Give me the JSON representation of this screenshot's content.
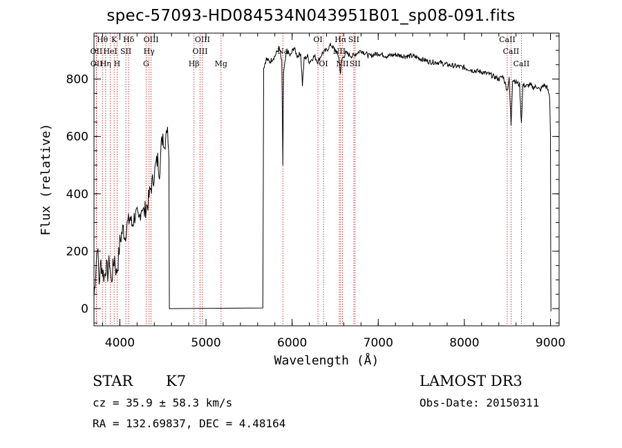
{
  "title": "spec-57093-HD084534N043951B01_sp08-091.fits",
  "info": {
    "class_label": "STAR",
    "subclass": "K7",
    "survey": "LAMOST DR3",
    "cz": "cz = 35.9 ± 58.3 km/s",
    "obs_date": "Obs-Date: 20150311",
    "radec": "RA = 132.69837, DEC =   4.48164"
  },
  "chart_data": {
    "type": "line",
    "title": "spec-57093-HD084534N043951B01_sp08-091.fits",
    "xlabel": "Wavelength (Å)",
    "ylabel": "Flux (relative)",
    "xlim": [
      3700,
      9100
    ],
    "ylim": [
      -60,
      960
    ],
    "xticks": [
      4000,
      5000,
      6000,
      7000,
      8000,
      9000
    ],
    "yticks": [
      0,
      200,
      400,
      600,
      800
    ],
    "spectrum": [
      [
        3700,
        40
      ],
      [
        3720,
        130
      ],
      [
        3740,
        230
      ],
      [
        3760,
        90
      ],
      [
        3780,
        160
      ],
      [
        3800,
        130
      ],
      [
        3820,
        110
      ],
      [
        3840,
        150
      ],
      [
        3860,
        120
      ],
      [
        3880,
        170
      ],
      [
        3900,
        90
      ],
      [
        3920,
        140
      ],
      [
        3940,
        180
      ],
      [
        3960,
        120
      ],
      [
        3980,
        160
      ],
      [
        4000,
        230
      ],
      [
        4020,
        260
      ],
      [
        4040,
        280
      ],
      [
        4060,
        250
      ],
      [
        4080,
        290
      ],
      [
        4100,
        300
      ],
      [
        4120,
        320
      ],
      [
        4140,
        290
      ],
      [
        4160,
        310
      ],
      [
        4180,
        330
      ],
      [
        4200,
        320
      ],
      [
        4220,
        300
      ],
      [
        4240,
        340
      ],
      [
        4260,
        360
      ],
      [
        4280,
        330
      ],
      [
        4300,
        350
      ],
      [
        4320,
        360
      ],
      [
        4340,
        390
      ],
      [
        4360,
        420
      ],
      [
        4380,
        440
      ],
      [
        4400,
        470
      ],
      [
        4420,
        500
      ],
      [
        4440,
        520
      ],
      [
        4460,
        480
      ],
      [
        4480,
        560
      ],
      [
        4500,
        610
      ],
      [
        4520,
        560
      ],
      [
        4540,
        640
      ],
      [
        4560,
        600
      ],
      [
        4570,
        560
      ],
      [
        4575,
        0
      ],
      [
        5660,
        0
      ],
      [
        5665,
        400
      ],
      [
        5670,
        840
      ],
      [
        5700,
        870
      ],
      [
        5740,
        860
      ],
      [
        5800,
        880
      ],
      [
        5850,
        910
      ],
      [
        5880,
        860
      ],
      [
        5893,
        500
      ],
      [
        5900,
        820
      ],
      [
        5940,
        900
      ],
      [
        5980,
        880
      ],
      [
        6020,
        910
      ],
      [
        6060,
        880
      ],
      [
        6100,
        890
      ],
      [
        6120,
        780
      ],
      [
        6140,
        870
      ],
      [
        6180,
        880
      ],
      [
        6200,
        860
      ],
      [
        6230,
        870
      ],
      [
        6260,
        880
      ],
      [
        6300,
        860
      ],
      [
        6350,
        890
      ],
      [
        6400,
        900
      ],
      [
        6450,
        920
      ],
      [
        6500,
        900
      ],
      [
        6540,
        880
      ],
      [
        6563,
        820
      ],
      [
        6580,
        870
      ],
      [
        6620,
        890
      ],
      [
        6700,
        880
      ],
      [
        6800,
        900
      ],
      [
        6900,
        880
      ],
      [
        7000,
        890
      ],
      [
        7100,
        880
      ],
      [
        7200,
        885
      ],
      [
        7300,
        880
      ],
      [
        7400,
        880
      ],
      [
        7500,
        870
      ],
      [
        7600,
        860
      ],
      [
        7700,
        858
      ],
      [
        7800,
        850
      ],
      [
        7900,
        845
      ],
      [
        8000,
        840
      ],
      [
        8100,
        830
      ],
      [
        8200,
        825
      ],
      [
        8300,
        815
      ],
      [
        8400,
        800
      ],
      [
        8450,
        810
      ],
      [
        8498,
        760
      ],
      [
        8520,
        800
      ],
      [
        8542,
        640
      ],
      [
        8560,
        800
      ],
      [
        8600,
        790
      ],
      [
        8640,
        780
      ],
      [
        8662,
        650
      ],
      [
        8680,
        780
      ],
      [
        8720,
        775
      ],
      [
        8760,
        780
      ],
      [
        8800,
        770
      ],
      [
        8840,
        775
      ],
      [
        8880,
        760
      ],
      [
        8920,
        780
      ],
      [
        8960,
        770
      ],
      [
        8990,
        740
      ],
      [
        9000,
        610
      ],
      [
        9003,
        150
      ],
      [
        9005,
        -10
      ]
    ],
    "lines": [
      {
        "label": "Hθ",
        "wl": 3798,
        "row": 1
      },
      {
        "label": "OII",
        "wl": 3727,
        "row": 2
      },
      {
        "label": "OII",
        "wl": 3729,
        "row": 3
      },
      {
        "label": "K",
        "wl": 3934,
        "row": 1
      },
      {
        "label": "HeI",
        "wl": 3889,
        "row": 2
      },
      {
        "label": "Hη",
        "wl": 3835,
        "row": 3
      },
      {
        "label": "H",
        "wl": 3968,
        "row": 3
      },
      {
        "label": "SII",
        "wl": 4070,
        "row": 2
      },
      {
        "label": "Hδ",
        "wl": 4102,
        "row": 1
      },
      {
        "label": "OIII",
        "wl": 4363,
        "row": 1
      },
      {
        "label": "Hγ",
        "wl": 4340,
        "row": 2
      },
      {
        "label": "G",
        "wl": 4305,
        "row": 3
      },
      {
        "label": "OIII",
        "wl": 4959,
        "row": 1
      },
      {
        "label": "OIII",
        "wl": 4932,
        "row": 2
      },
      {
        "label": "Hβ",
        "wl": 4861,
        "row": 3
      },
      {
        "label": "Mg",
        "wl": 5175,
        "row": 3
      },
      {
        "label": "Na",
        "wl": 5893,
        "row": 2
      },
      {
        "label": "OI",
        "wl": 6300,
        "row": 1
      },
      {
        "label": "OI",
        "wl": 6364,
        "row": 3
      },
      {
        "label": "Hα",
        "wl": 6563,
        "row": 1
      },
      {
        "label": "NII",
        "wl": 6548,
        "row": 2
      },
      {
        "label": "NII",
        "wl": 6584,
        "row": 3
      },
      {
        "label": "SII",
        "wl": 6716,
        "row": 1
      },
      {
        "label": "SII",
        "wl": 6731,
        "row": 3
      },
      {
        "label": "CaII",
        "wl": 8498,
        "row": 1
      },
      {
        "label": "CaII",
        "wl": 8542,
        "row": 2
      },
      {
        "label": "CaII",
        "wl": 8662,
        "row": 3
      }
    ],
    "colors": {
      "spectrum": "#000000",
      "lines": "#cc0000"
    }
  }
}
